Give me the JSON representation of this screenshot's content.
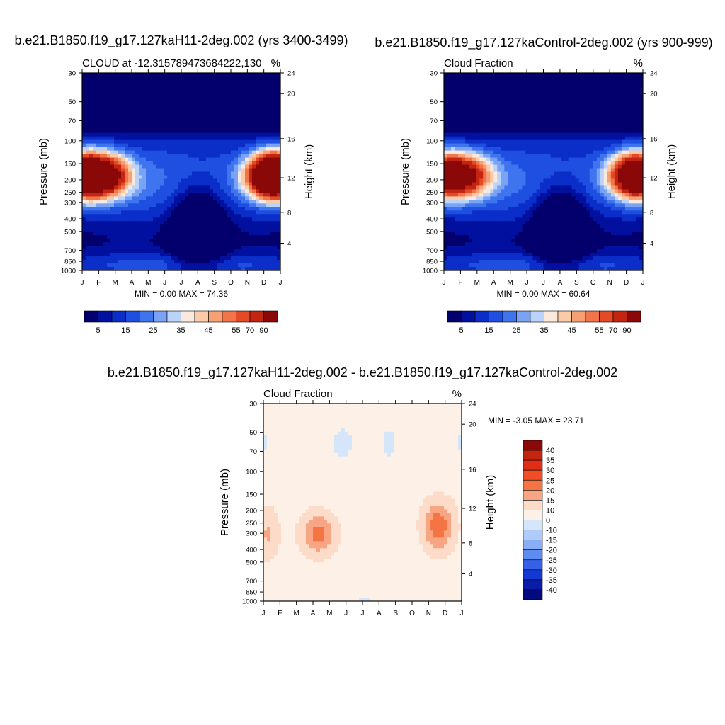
{
  "panels": [
    {
      "title": "b.e21.B1850.f19_g17.127kaH11-2deg.002 (yrs 3400-3499)",
      "subtitle_left": "CLOUD at -12.315789473684222,130",
      "subtitle_right": "%",
      "minmax": "MIN =   0.00 MAX =  74.36"
    },
    {
      "title": "b.e21.B1850.f19_g17.127kaControl-2deg.002 (yrs 900-999)",
      "subtitle_left": "Cloud Fraction",
      "subtitle_right": "%",
      "minmax": "MIN =   0.00 MAX =  60.64"
    },
    {
      "title": "b.e21.B1850.f19_g17.127kaH11-2deg.002 - b.e21.B1850.f19_g17.127kaControl-2deg.002",
      "subtitle_left": "Cloud Fraction",
      "subtitle_right": "%",
      "minmax": "MIN =  -3.05 MAX =  23.71"
    }
  ],
  "chart_data": [
    {
      "type": "heatmap",
      "ylabel": "Pressure (mb)",
      "ylabel_right": "Height (km)",
      "x_ticks": [
        "J",
        "F",
        "M",
        "A",
        "M",
        "J",
        "J",
        "A",
        "S",
        "O",
        "N",
        "D",
        "J"
      ],
      "y_ticks": [
        30,
        50,
        70,
        100,
        150,
        200,
        250,
        300,
        400,
        500,
        700,
        850,
        1000
      ],
      "y_right_ticks": [
        24,
        20,
        16,
        12,
        8,
        4
      ],
      "colorbar": {
        "colors": [
          "#03006d",
          "#02109f",
          "#0b2ec9",
          "#1f4fe0",
          "#3f74ef",
          "#7aa3f5",
          "#b9d3fb",
          "#fbe9dc",
          "#fbcaa8",
          "#f7a074",
          "#f1744b",
          "#e44a25",
          "#c42511",
          "#8a0808"
        ],
        "labels": [
          "5",
          "15",
          "25",
          "35",
          "45",
          "55",
          "70",
          "90"
        ]
      },
      "cloud_max": 74.36
    },
    {
      "type": "heatmap",
      "ylabel": "Pressure (mb)",
      "ylabel_right": "Height (km)",
      "x_ticks": [
        "J",
        "F",
        "M",
        "A",
        "M",
        "J",
        "J",
        "A",
        "S",
        "O",
        "N",
        "D",
        "J"
      ],
      "y_ticks": [
        30,
        50,
        70,
        100,
        150,
        200,
        250,
        300,
        400,
        500,
        700,
        850,
        1000
      ],
      "y_right_ticks": [
        24,
        20,
        16,
        12,
        8,
        4
      ],
      "colorbar": {
        "colors": [
          "#03006d",
          "#02109f",
          "#0b2ec9",
          "#1f4fe0",
          "#3f74ef",
          "#7aa3f5",
          "#b9d3fb",
          "#fbe9dc",
          "#fbcaa8",
          "#f7a074",
          "#f1744b",
          "#e44a25",
          "#c42511",
          "#8a0808"
        ],
        "labels": [
          "5",
          "15",
          "25",
          "35",
          "45",
          "55",
          "70",
          "90"
        ]
      },
      "cloud_max": 60.64
    },
    {
      "type": "heatmap",
      "ylabel": "Pressure (mb)",
      "ylabel_right": "Height (km)",
      "x_ticks": [
        "J",
        "F",
        "M",
        "A",
        "M",
        "J",
        "J",
        "A",
        "S",
        "O",
        "N",
        "D",
        "J"
      ],
      "y_ticks": [
        30,
        50,
        70,
        100,
        150,
        200,
        250,
        300,
        400,
        500,
        700,
        850,
        1000
      ],
      "y_right_ticks": [
        24,
        20,
        16,
        12,
        8,
        4
      ],
      "colorbar": {
        "colors": [
          "#8a0808",
          "#c42511",
          "#e02d14",
          "#f24d24",
          "#f47443",
          "#f7a582",
          "#fcdcc8",
          "#fcf0e7",
          "#d6e6fa",
          "#b0cbf7",
          "#8aaef5",
          "#5f8cf1",
          "#3560e8",
          "#1438d4",
          "#0a1ca8",
          "#030a7e"
        ],
        "labels": [
          "40",
          "35",
          "30",
          "25",
          "20",
          "15",
          "10",
          "0",
          "-10",
          "-15",
          "-20",
          "-25",
          "-30",
          "-35",
          "-40"
        ]
      },
      "diff_min": -3.05,
      "diff_max": 23.71
    }
  ]
}
